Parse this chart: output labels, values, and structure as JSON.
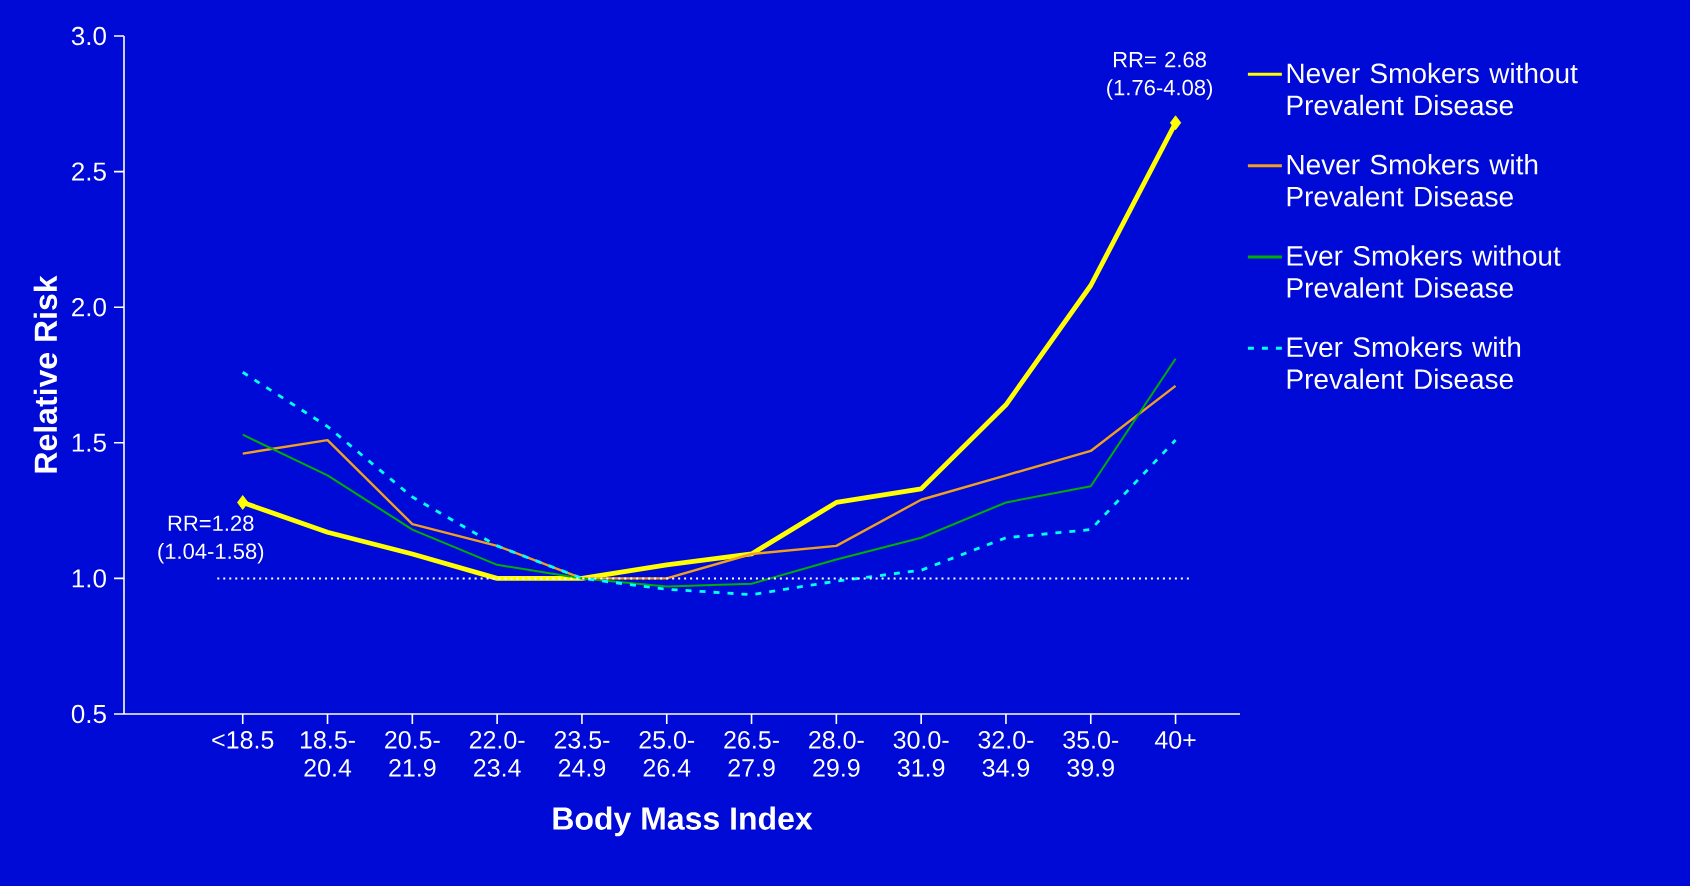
{
  "chart_data": {
    "type": "line",
    "ylabel": "Relative Risk",
    "xlabel": "Body Mass Index",
    "categories": [
      "<18.5",
      "18.5-20.4",
      "20.5-21.9",
      "22.0-23.4",
      "23.5-24.9",
      "25.0-26.4",
      "26.5-27.9",
      "28.0-29.9",
      "30.0-31.9",
      "32.0-34.9",
      "35.0-39.9",
      "40+"
    ],
    "series": [
      {
        "name": "Never Smokers without Prevalent Disease",
        "color": "#ffff00",
        "line_style": "solid",
        "values": [
          1.28,
          1.17,
          1.09,
          1.0,
          1.0,
          1.05,
          1.09,
          1.28,
          1.33,
          1.64,
          2.08,
          2.68
        ]
      },
      {
        "name": "Never Smokers with Prevalent Disease",
        "color": "#f0a020",
        "line_style": "solid",
        "values": [
          1.46,
          1.51,
          1.2,
          1.12,
          1.0,
          1.0,
          1.09,
          1.12,
          1.29,
          1.38,
          1.47,
          1.71
        ]
      },
      {
        "name": "Ever Smokers without Prevalent Disease",
        "color": "#00b000",
        "line_style": "solid",
        "values": [
          1.53,
          1.38,
          1.18,
          1.05,
          1.0,
          0.97,
          0.98,
          1.07,
          1.15,
          1.28,
          1.34,
          1.81
        ]
      },
      {
        "name": "Ever Smokers with Prevalent Disease",
        "color": "#00ffff",
        "line_style": "dashed",
        "values": [
          1.76,
          1.56,
          1.3,
          1.12,
          1.0,
          0.96,
          0.94,
          0.99,
          1.03,
          1.15,
          1.18,
          1.51
        ]
      }
    ],
    "ylim": [
      0.5,
      3.0
    ],
    "yticks": [
      0.5,
      {
        "value": 1.0,
        "label": "1.0"
      },
      1.5,
      {
        "value": 2.0,
        "label": "2.0"
      },
      2.5,
      {
        "value": 3.0,
        "label": "3.0"
      }
    ],
    "ref_lines": [
      {
        "axis": "y",
        "value": 1.0,
        "color": "#ffffff",
        "line_style": "dotted"
      }
    ],
    "annotations": [
      {
        "text": "RR=1.28 (1.04-1.58)",
        "x": "<18.5",
        "y": 1.28
      },
      {
        "text": "RR= 2.68 (1.76-4.08)",
        "x": "40+",
        "y": 2.68
      }
    ],
    "grid": false,
    "legend": "right",
    "marker": "none"
  }
}
